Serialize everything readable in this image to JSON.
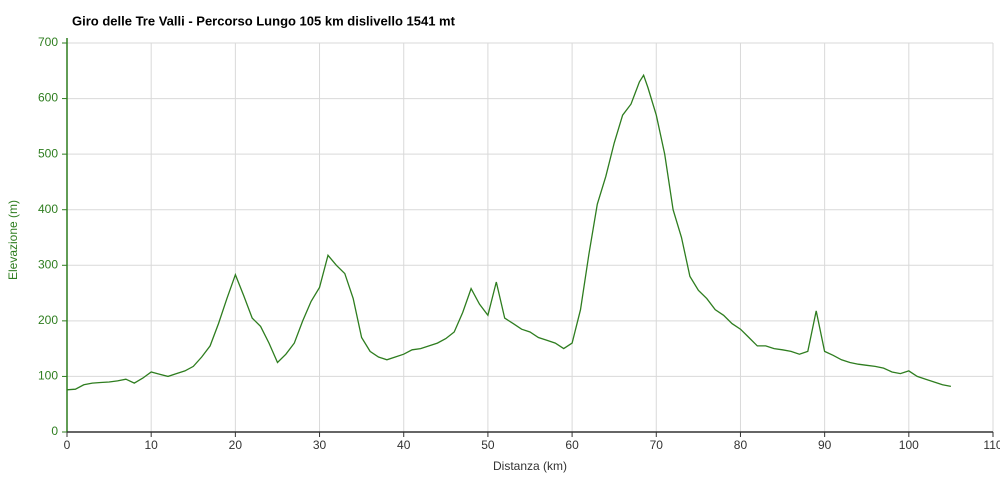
{
  "chart_data": {
    "type": "line",
    "title": "Giro delle Tre Valli - Percorso Lungo 105 km dislivello 1541 mt",
    "x_label": "Distanza (km)",
    "y_label": "Elevazione (m)",
    "x": [
      0,
      1,
      2,
      3,
      4,
      5,
      6,
      7,
      8,
      9,
      10,
      11,
      12,
      13,
      14,
      15,
      16,
      17,
      18,
      19,
      20,
      21,
      22,
      23,
      24,
      25,
      26,
      27,
      28,
      29,
      30,
      31,
      32,
      33,
      34,
      35,
      36,
      37,
      38,
      39,
      40,
      41,
      42,
      43,
      44,
      45,
      46,
      47,
      48,
      49,
      50,
      51,
      52,
      53,
      54,
      55,
      56,
      57,
      58,
      59,
      60,
      61,
      62,
      63,
      64,
      65,
      66,
      67,
      68,
      68.5,
      69,
      70,
      71,
      72,
      73,
      74,
      75,
      76,
      77,
      78,
      79,
      80,
      81,
      82,
      83,
      84,
      85,
      86,
      87,
      88,
      89,
      90,
      91,
      92,
      93,
      94,
      95,
      96,
      97,
      98,
      99,
      100,
      101,
      102,
      103,
      104,
      105
    ],
    "values": [
      76,
      77,
      85,
      88,
      89,
      90,
      92,
      95,
      88,
      97,
      108,
      104,
      100,
      105,
      110,
      118,
      135,
      155,
      195,
      240,
      283,
      245,
      205,
      190,
      160,
      125,
      140,
      160,
      200,
      235,
      260,
      318,
      300,
      285,
      240,
      170,
      145,
      135,
      130,
      135,
      140,
      148,
      150,
      155,
      160,
      168,
      180,
      215,
      258,
      230,
      210,
      270,
      205,
      195,
      185,
      180,
      170,
      165,
      160,
      150,
      160,
      220,
      320,
      410,
      460,
      520,
      570,
      590,
      630,
      642,
      620,
      570,
      500,
      400,
      350,
      280,
      255,
      240,
      220,
      210,
      195,
      185,
      170,
      155,
      155,
      150,
      148,
      145,
      140,
      145,
      218,
      145,
      138,
      130,
      125,
      122,
      120,
      118,
      115,
      108,
      105,
      110,
      100,
      95,
      90,
      85,
      82
    ],
    "color": "#2e7d1f",
    "xlim": [
      0,
      110
    ],
    "ylim": [
      0,
      700
    ],
    "xticks": [
      0,
      10,
      20,
      30,
      40,
      50,
      60,
      70,
      80,
      90,
      100,
      110
    ],
    "yticks": [
      0,
      100,
      200,
      300,
      400,
      500,
      600,
      700
    ],
    "grid": true
  }
}
